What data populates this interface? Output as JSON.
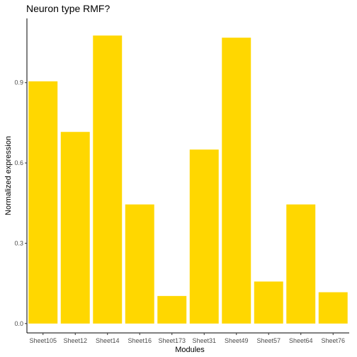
{
  "chart_data": {
    "type": "bar",
    "title": "Neuron type RMF?",
    "xlabel": "Modules",
    "ylabel": "Normalized expression",
    "categories": [
      "Sheet105",
      "Sheet12",
      "Sheet14",
      "Sheet16",
      "Sheet173",
      "Sheet31",
      "Sheet49",
      "Sheet57",
      "Sheet64",
      "Sheet76"
    ],
    "values": [
      0.905,
      0.716,
      1.076,
      0.445,
      0.103,
      0.65,
      1.068,
      0.157,
      0.445,
      0.117
    ],
    "ylim": [
      -0.035,
      1.14
    ],
    "yticks": [
      0.0,
      0.3,
      0.6,
      0.9
    ],
    "ytick_labels": [
      "0.0",
      "0.3",
      "0.6",
      "0.9"
    ],
    "bar_color": "#FFD700",
    "grid": false,
    "legend": "none"
  }
}
